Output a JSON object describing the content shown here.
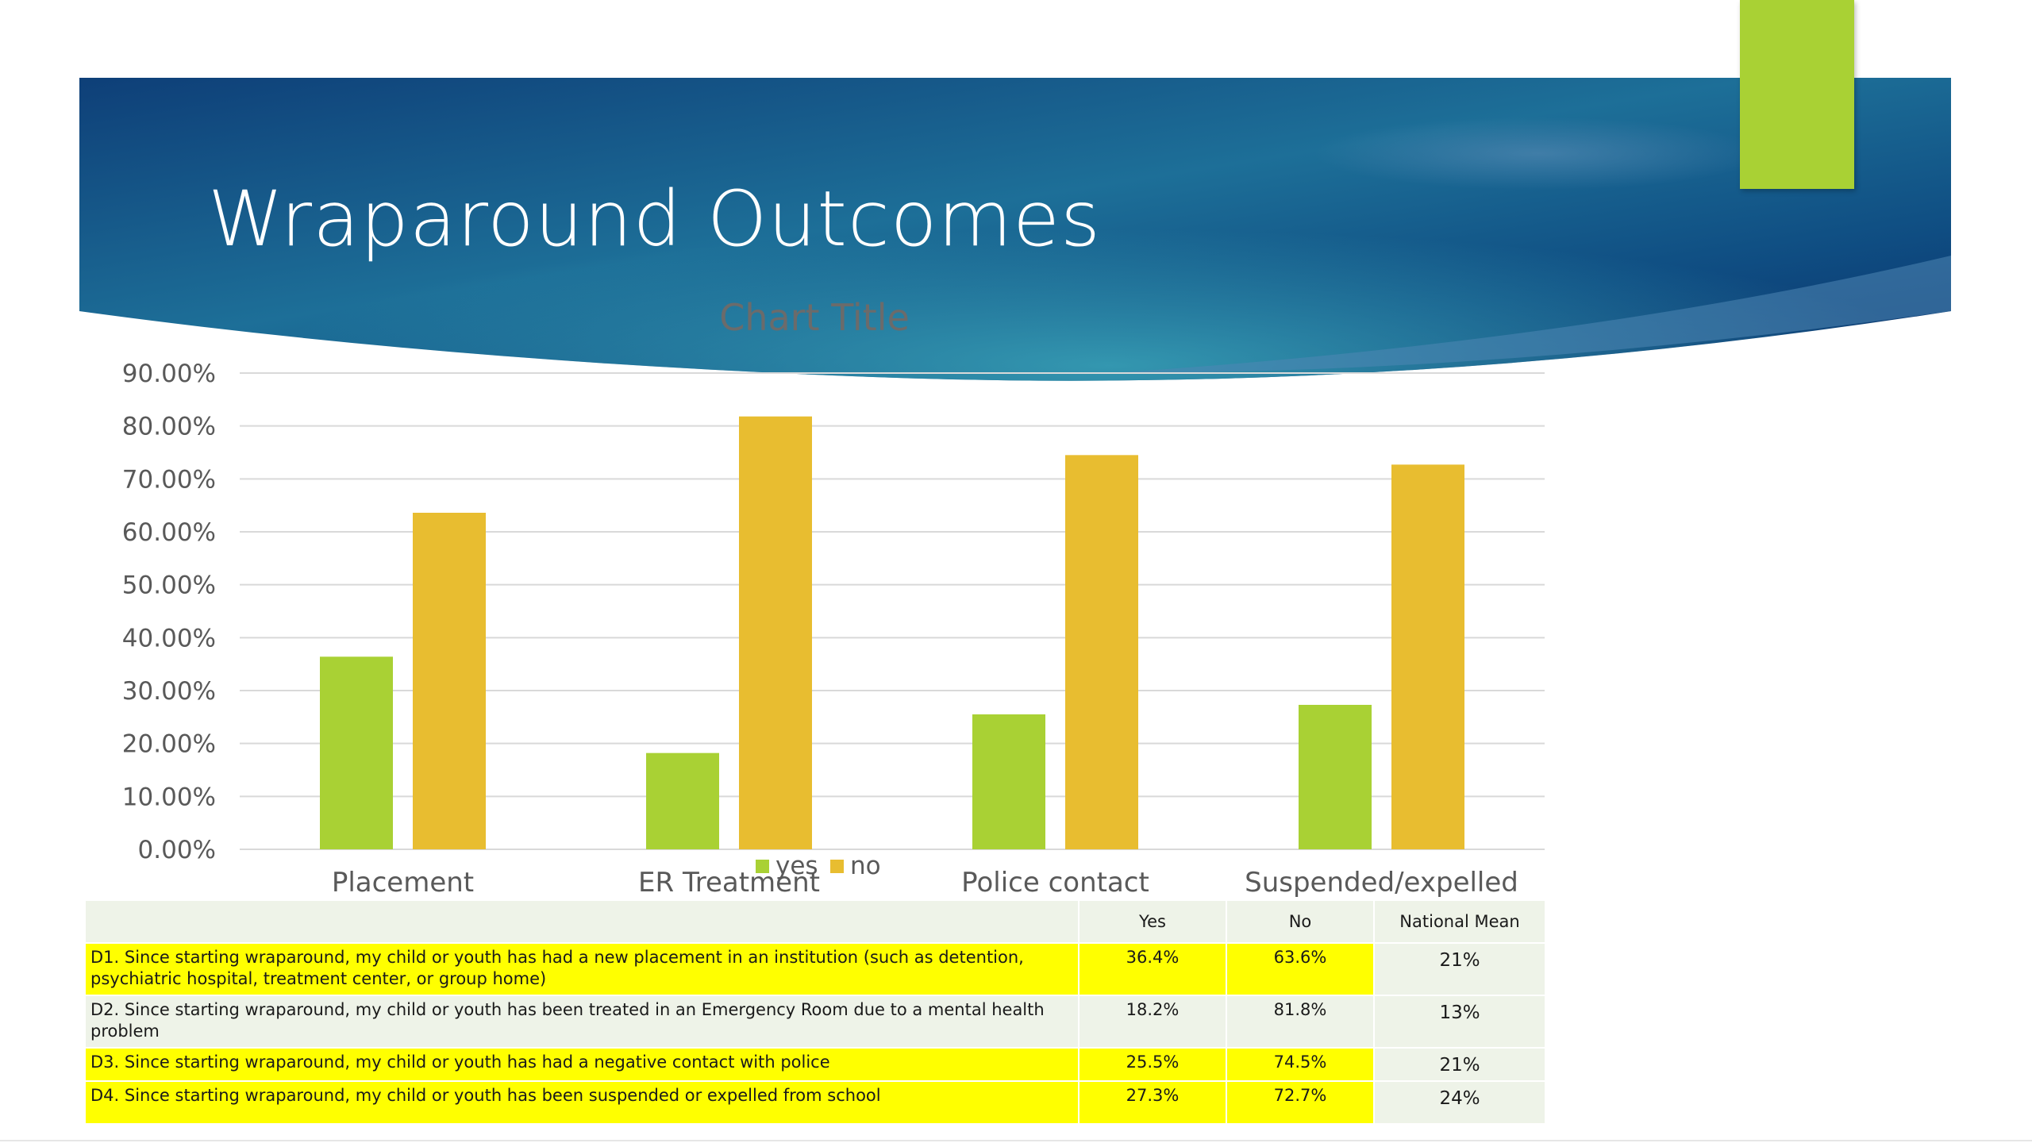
{
  "slide": {
    "title": "Wraparound Outcomes",
    "colors": {
      "banner_dark": "#0d3470",
      "banner_light": "#2a8aa6",
      "accent": "#a9d134"
    }
  },
  "chart_data": {
    "type": "bar",
    "title": "Chart Title",
    "categories": [
      "Placement",
      "ER Treatment",
      "Police contact",
      "Suspended/expelled"
    ],
    "series": [
      {
        "name": "yes",
        "color": "#a9d134",
        "values": [
          36.4,
          18.2,
          25.5,
          27.3
        ]
      },
      {
        "name": "no",
        "color": "#e8bd30",
        "values": [
          63.6,
          81.8,
          74.5,
          72.7
        ]
      }
    ],
    "ylim": [
      0,
      90
    ],
    "yticks": [
      "0.00%",
      "10.00%",
      "20.00%",
      "30.00%",
      "40.00%",
      "50.00%",
      "60.00%",
      "70.00%",
      "80.00%",
      "90.00%"
    ],
    "grid": true,
    "legend": "bottom-center"
  },
  "table": {
    "headers": [
      "",
      "Yes",
      "No",
      "National Mean"
    ],
    "rows": [
      {
        "question": "D1. Since starting wraparound, my child or youth has had a new placement in an institution (such as detention, psychiatric hospital, treatment center, or group home)",
        "yes": "36.4%",
        "no": "63.6%",
        "mean": "21%",
        "highlight": true
      },
      {
        "question": "D2. Since starting wraparound, my child or youth has been treated in an Emergency Room due to a mental health problem",
        "yes": "18.2%",
        "no": "81.8%",
        "mean": "13%",
        "highlight": false
      },
      {
        "question": "D3. Since starting wraparound, my child or youth has had a negative contact with police",
        "yes": "25.5%",
        "no": "74.5%",
        "mean": "21%",
        "highlight": true
      },
      {
        "question": "D4. Since starting wraparound, my child or youth has been suspended or expelled from school",
        "yes": "27.3%",
        "no": "72.7%",
        "mean": "24%",
        "highlight": true
      }
    ]
  }
}
